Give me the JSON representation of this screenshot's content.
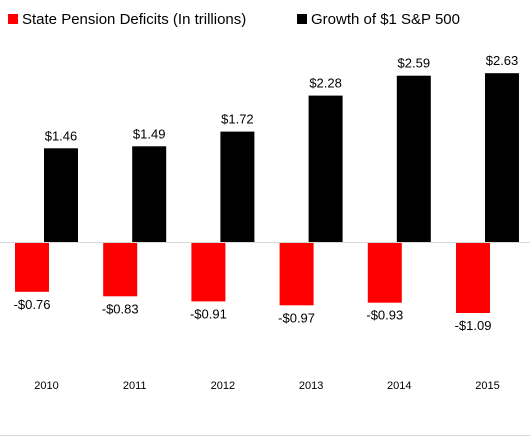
{
  "chart_data": {
    "type": "bar",
    "categories": [
      "2010",
      "2011",
      "2012",
      "2013",
      "2014",
      "2015"
    ],
    "series": [
      {
        "name": "State Pension Deficits (In trillions)",
        "values": [
          -0.76,
          -0.83,
          -0.91,
          -0.97,
          -0.93,
          -1.09
        ],
        "labels": [
          "-$0.76",
          "-$0.83",
          "-$0.91",
          "-$0.97",
          "-$0.93",
          "-$1.09"
        ],
        "color": "#ff0000"
      },
      {
        "name": "Growth of $1 S&P 500",
        "values": [
          1.46,
          1.49,
          1.72,
          2.28,
          2.59,
          2.63
        ],
        "labels": [
          "$1.46",
          "$1.49",
          "$1.72",
          "$2.28",
          "$2.59",
          "$2.63"
        ],
        "color": "#000000"
      }
    ],
    "title": "",
    "xlabel": "",
    "ylabel": "",
    "ylim": [
      -1.2,
      2.8
    ],
    "grid": false,
    "legend": "top-left"
  }
}
